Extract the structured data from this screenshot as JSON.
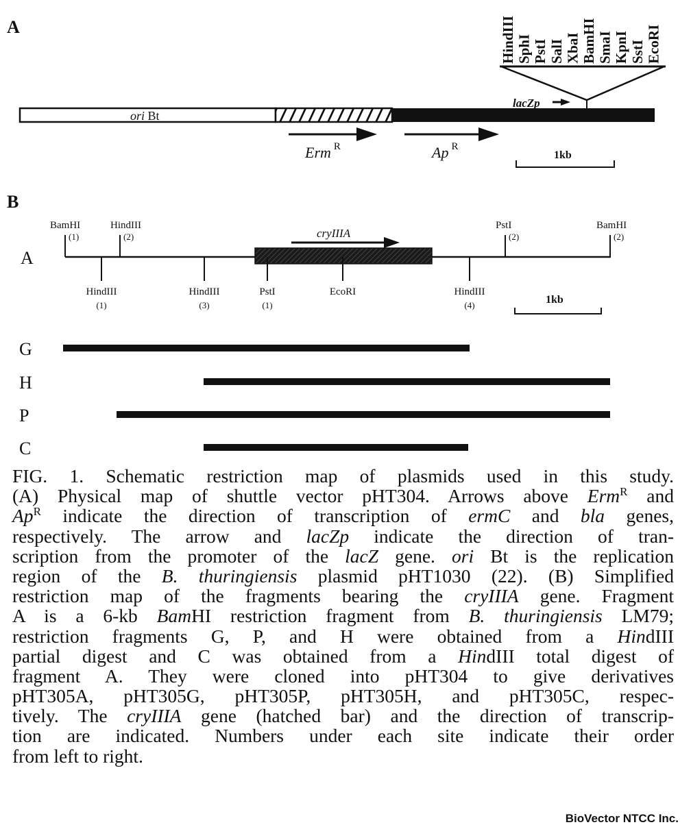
{
  "panel_a": {
    "label": "A",
    "ori_label_italic": "ori",
    "ori_label_rest": " Bt",
    "polylinker_sites": [
      "HindIII",
      "SphI",
      "PstI",
      "SalI",
      "XbaI",
      "BamHI",
      "SmaI",
      "KpnI",
      "SstI",
      "EcoRI"
    ],
    "lacz_label": "lacZp",
    "erm_label": "Erm",
    "ap_label": "Ap",
    "superscript": "R",
    "scale_label": "1kb"
  },
  "panel_b": {
    "label": "B",
    "fragment_a_label": "A",
    "gene_label": "cryIIIA",
    "sites_above": [
      {
        "name": "BamHI",
        "order": "(1)"
      },
      {
        "name": "HindIII",
        "order": "(2)"
      },
      {
        "name": "PstI",
        "order": "(2)"
      },
      {
        "name": "BamHI",
        "order": "(2)"
      }
    ],
    "sites_below": [
      {
        "name": "HindIII",
        "order": "(1)"
      },
      {
        "name": "HindIII",
        "order": "(3)"
      },
      {
        "name": "PstI",
        "order": "(1)"
      },
      {
        "name": "EcoRI",
        "order": ""
      },
      {
        "name": "HindIII",
        "order": "(4)"
      }
    ],
    "scale_label": "1kb",
    "fragments": [
      "G",
      "H",
      "P",
      "C"
    ]
  },
  "caption": [
    [
      {
        "t": "FIG. 1. Schematic restriction map of plasmids used in this study."
      }
    ],
    [
      {
        "t": "(A) Physical map of shuttle vector pHT304. Arrows above "
      },
      {
        "t": "Erm",
        "i": true
      },
      {
        "t": "R",
        "sup": true
      },
      {
        "t": " and"
      }
    ],
    [
      {
        "t": "Ap",
        "i": true
      },
      {
        "t": "R",
        "sup": true
      },
      {
        "t": " indicate the direction of transcription of "
      },
      {
        "t": "ermC",
        "i": true
      },
      {
        "t": " and "
      },
      {
        "t": "bla",
        "i": true
      },
      {
        "t": " genes,"
      }
    ],
    [
      {
        "t": "respectively. The arrow and "
      },
      {
        "t": "lacZp",
        "i": true
      },
      {
        "t": " indicate the direction of tran-"
      }
    ],
    [
      {
        "t": "scription from the promoter of the "
      },
      {
        "t": "lacZ",
        "i": true
      },
      {
        "t": " gene. "
      },
      {
        "t": "ori",
        "i": true
      },
      {
        "t": " Bt is the replication"
      }
    ],
    [
      {
        "t": "region of the "
      },
      {
        "t": "B. thuringiensis",
        "i": true
      },
      {
        "t": " plasmid pHT1030 (22). (B) Simplified"
      }
    ],
    [
      {
        "t": "restriction map of the fragments bearing the "
      },
      {
        "t": "cryIIIA",
        "i": true
      },
      {
        "t": " gene. Fragment"
      }
    ],
    [
      {
        "t": "A is a 6-kb "
      },
      {
        "t": "Bam",
        "i": true
      },
      {
        "t": "HI restriction fragment from "
      },
      {
        "t": "B. thuringiensis",
        "i": true
      },
      {
        "t": " LM79;"
      }
    ],
    [
      {
        "t": "restriction fragments G, P, and H were obtained from a "
      },
      {
        "t": "Hin",
        "i": true
      },
      {
        "t": "dIII"
      }
    ],
    [
      {
        "t": "partial digest and C was obtained from a "
      },
      {
        "t": "Hin",
        "i": true
      },
      {
        "t": "dIII total digest of"
      }
    ],
    [
      {
        "t": "fragment A. They were cloned into pHT304 to give derivatives"
      }
    ],
    [
      {
        "t": "pHT305A, pHT305G, pHT305P, pHT305H, and pHT305C, respec-"
      }
    ],
    [
      {
        "t": "tively. The "
      },
      {
        "t": "cryIIIA",
        "i": true
      },
      {
        "t": " gene (hatched bar) and the direction of transcrip-"
      }
    ],
    [
      {
        "t": "tion are indicated. Numbers under each site indicate their order"
      }
    ],
    [
      {
        "t": "from left to right."
      }
    ]
  ],
  "watermark": "BioVector NTCC Inc."
}
